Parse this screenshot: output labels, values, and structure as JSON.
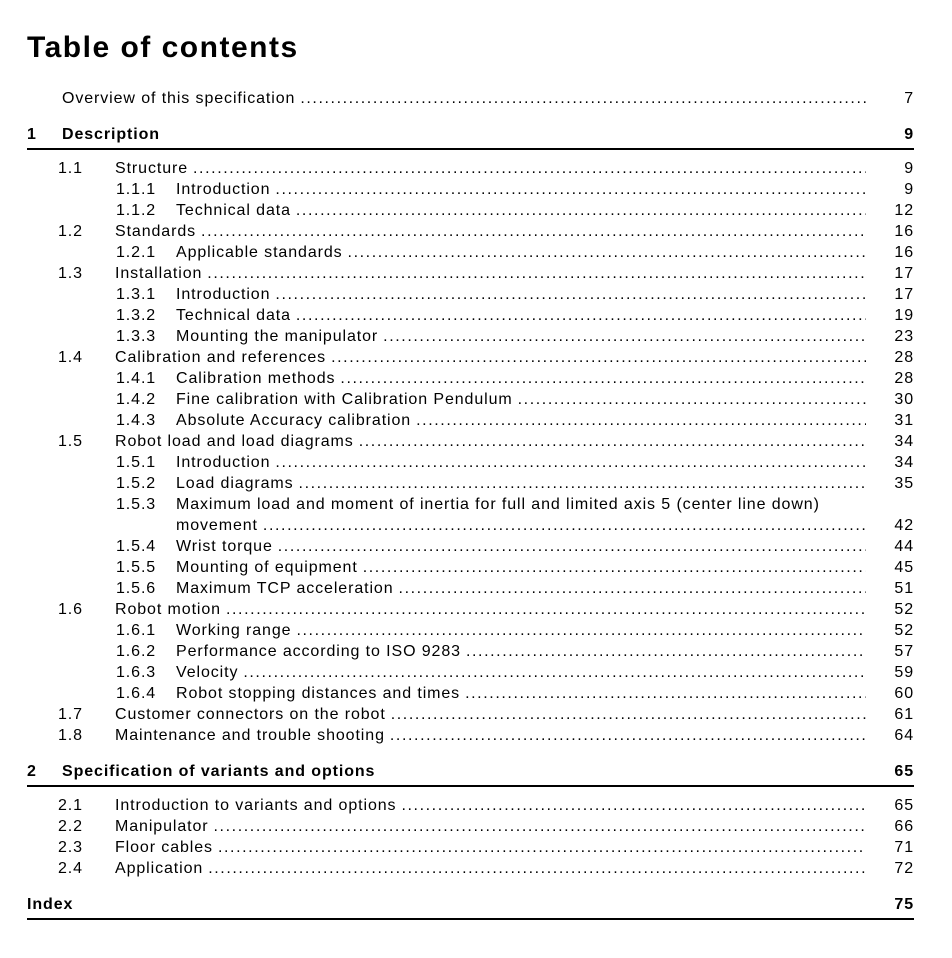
{
  "page": {
    "title": "Table of contents"
  },
  "colors": {
    "text": "#000000",
    "background": "#ffffff",
    "rule": "#000000"
  },
  "toc": {
    "entries": [
      {
        "level": "overview",
        "num": "",
        "label": "Overview of this specification",
        "page": "7"
      },
      {
        "level": "chapter",
        "num": "1",
        "label": "Description",
        "page": "9"
      },
      {
        "level": "s1",
        "num": "1.1",
        "label": "Structure",
        "page": "9"
      },
      {
        "level": "s2",
        "num": "1.1.1",
        "label": "Introduction",
        "page": "9"
      },
      {
        "level": "s2",
        "num": "1.1.2",
        "label": "Technical data",
        "page": "12"
      },
      {
        "level": "s1",
        "num": "1.2",
        "label": "Standards",
        "page": "16"
      },
      {
        "level": "s2",
        "num": "1.2.1",
        "label": "Applicable standards",
        "page": "16"
      },
      {
        "level": "s1",
        "num": "1.3",
        "label": "Installation",
        "page": "17"
      },
      {
        "level": "s2",
        "num": "1.3.1",
        "label": "Introduction",
        "page": "17"
      },
      {
        "level": "s2",
        "num": "1.3.2",
        "label": "Technical data",
        "page": "19"
      },
      {
        "level": "s2",
        "num": "1.3.3",
        "label": "Mounting the manipulator",
        "page": "23"
      },
      {
        "level": "s1",
        "num": "1.4",
        "label": "Calibration and references",
        "page": "28"
      },
      {
        "level": "s2",
        "num": "1.4.1",
        "label": "Calibration methods",
        "page": "28"
      },
      {
        "level": "s2",
        "num": "1.4.2",
        "label": "Fine calibration with Calibration Pendulum",
        "page": "30"
      },
      {
        "level": "s2",
        "num": "1.4.3",
        "label": "Absolute Accuracy calibration",
        "page": "31"
      },
      {
        "level": "s1",
        "num": "1.5",
        "label": "Robot load and load diagrams",
        "page": "34"
      },
      {
        "level": "s2",
        "num": "1.5.1",
        "label": "Introduction",
        "page": "34"
      },
      {
        "level": "s2",
        "num": "1.5.2",
        "label": "Load diagrams",
        "page": "35"
      },
      {
        "level": "s2",
        "num": "1.5.3",
        "label": "Maximum load and moment of inertia for full and limited axis 5 (center line down)",
        "cont": "movement",
        "page": "42"
      },
      {
        "level": "s2",
        "num": "1.5.4",
        "label": "Wrist torque",
        "page": "44"
      },
      {
        "level": "s2",
        "num": "1.5.5",
        "label": "Mounting of equipment",
        "page": "45"
      },
      {
        "level": "s2",
        "num": "1.5.6",
        "label": "Maximum TCP acceleration",
        "page": "51"
      },
      {
        "level": "s1",
        "num": "1.6",
        "label": "Robot motion",
        "page": "52"
      },
      {
        "level": "s2",
        "num": "1.6.1",
        "label": "Working range",
        "page": "52"
      },
      {
        "level": "s2",
        "num": "1.6.2",
        "label": "Performance according to ISO 9283",
        "page": "57"
      },
      {
        "level": "s2",
        "num": "1.6.3",
        "label": "Velocity",
        "page": "59"
      },
      {
        "level": "s2",
        "num": "1.6.4",
        "label": "Robot stopping distances and times",
        "page": "60"
      },
      {
        "level": "s1",
        "num": "1.7",
        "label": "Customer connectors on the robot",
        "page": "61"
      },
      {
        "level": "s1",
        "num": "1.8",
        "label": "Maintenance and trouble shooting",
        "page": "64"
      },
      {
        "level": "chapter",
        "num": "2",
        "label": "Specification of variants and options",
        "page": "65"
      },
      {
        "level": "s1",
        "num": "2.1",
        "label": "Introduction to variants and options",
        "page": "65"
      },
      {
        "level": "s1",
        "num": "2.2",
        "label": "Manipulator",
        "page": "66"
      },
      {
        "level": "s1",
        "num": "2.3",
        "label": "Floor cables",
        "page": "71"
      },
      {
        "level": "s1",
        "num": "2.4",
        "label": "Application",
        "page": "72"
      },
      {
        "level": "index",
        "num": "",
        "label": "Index",
        "page": "75"
      }
    ]
  }
}
